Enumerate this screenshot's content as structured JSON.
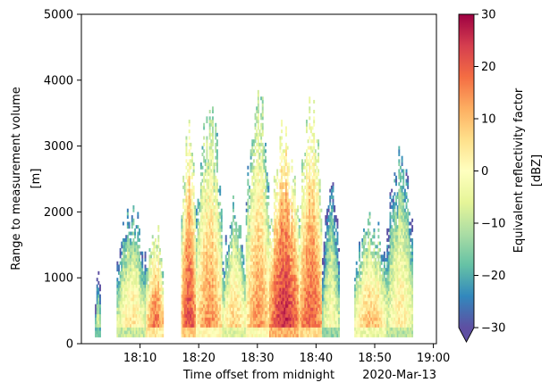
{
  "chart_data": {
    "type": "heatmap",
    "x_label": "Time offset from midnight",
    "x_offset_label": "2020-Mar-13",
    "y_label_line1": "Range to measurement volume",
    "y_label_line2": "[m]",
    "x_ticks": [
      "18:10",
      "18:20",
      "18:30",
      "18:40",
      "18:50",
      "19:00"
    ],
    "x_tick_minutes": [
      10,
      20,
      30,
      40,
      50,
      60
    ],
    "x_range_minutes_after_18h": [
      0,
      60.5
    ],
    "y_ticks": [
      "0",
      "1000",
      "2000",
      "3000",
      "4000",
      "5000"
    ],
    "y_tick_values": [
      0,
      1000,
      2000,
      3000,
      4000,
      5000
    ],
    "ylim": [
      0,
      5000
    ],
    "colorbar": {
      "label_line1": "Equivalent reflectivity factor",
      "label_line2": "[dBZ]",
      "ticks": [
        "30",
        "20",
        "10",
        "0",
        "−10",
        "−20",
        "−30"
      ],
      "tick_values": [
        30,
        20,
        10,
        0,
        -10,
        -20,
        -30
      ],
      "range": [
        -30,
        30
      ],
      "extend": "min",
      "colormap": "Spectral_r",
      "colors": [
        "#5e4fa2",
        "#3288bd",
        "#66c2a5",
        "#abdda4",
        "#e6f598",
        "#ffffbf",
        "#fee08b",
        "#fdae61",
        "#f46d43",
        "#d53e4f",
        "#9e0142"
      ]
    },
    "grid": false,
    "echo_columns": [
      {
        "t_start": 2.3,
        "t_end": 3.2,
        "base_m": 100,
        "top_m": 1000,
        "core_dbz": -14
      },
      {
        "t_start": 6.0,
        "t_end": 11.0,
        "base_m": 100,
        "top_m": 2000,
        "core_dbz": -5
      },
      {
        "t_start": 11.0,
        "t_end": 14.0,
        "base_m": 100,
        "top_m": 1700,
        "core_dbz": 8
      },
      {
        "t_start": 17.0,
        "t_end": 19.5,
        "base_m": 100,
        "top_m": 3300,
        "core_dbz": 12
      },
      {
        "t_start": 19.5,
        "t_end": 24.0,
        "base_m": 100,
        "top_m": 3300,
        "core_dbz": 4
      },
      {
        "t_start": 24.0,
        "t_end": 28.0,
        "base_m": 100,
        "top_m": 2000,
        "core_dbz": -2
      },
      {
        "t_start": 28.0,
        "t_end": 32.0,
        "base_m": 100,
        "top_m": 3700,
        "core_dbz": 4
      },
      {
        "t_start": 32.0,
        "t_end": 37.0,
        "base_m": 100,
        "top_m": 3000,
        "core_dbz": 15
      },
      {
        "t_start": 37.0,
        "t_end": 41.0,
        "base_m": 100,
        "top_m": 3500,
        "core_dbz": 10
      },
      {
        "t_start": 41.0,
        "t_end": 44.0,
        "base_m": 100,
        "top_m": 2400,
        "core_dbz": -10
      },
      {
        "t_start": 46.5,
        "t_end": 52.0,
        "base_m": 100,
        "top_m": 1800,
        "core_dbz": 0
      },
      {
        "t_start": 52.0,
        "t_end": 56.5,
        "base_m": 100,
        "top_m": 2800,
        "core_dbz": -6
      }
    ]
  }
}
